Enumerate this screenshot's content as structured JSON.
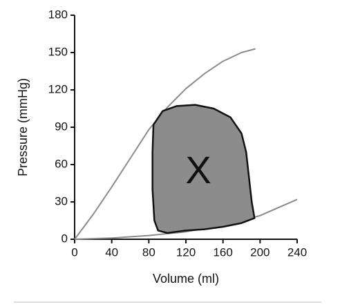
{
  "chart_data": {
    "type": "line",
    "x_label": "Volume (ml)",
    "y_label": "Pressure (mmHg)",
    "annotation": "X",
    "xlim": [
      0,
      240
    ],
    "xticks": [
      0,
      40,
      80,
      120,
      160,
      200,
      240
    ],
    "ylim": [
      0,
      180
    ],
    "yticks": [
      0,
      30,
      60,
      90,
      120,
      150,
      180
    ],
    "series": [
      {
        "color": "#8a8a8a",
        "fill": null,
        "x": [
          0,
          20,
          40,
          60,
          80,
          100,
          120,
          140,
          160,
          180,
          195
        ],
        "values": [
          0,
          20,
          42,
          65,
          88,
          106,
          121,
          133,
          143,
          150,
          153
        ]
      },
      {
        "color": "#8a8a8a",
        "fill": null,
        "x": [
          0,
          40,
          80,
          120,
          160,
          200,
          240
        ],
        "values": [
          0,
          1,
          3,
          6,
          11,
          19,
          32
        ]
      },
      {
        "color": "#111111",
        "fill": "#8c8c8c",
        "x": [
          85,
          95,
          110,
          130,
          150,
          168,
          180,
          185,
          188,
          191,
          194,
          180,
          160,
          140,
          120,
          100,
          90,
          86,
          84,
          84
        ],
        "values": [
          92,
          103,
          107,
          108,
          105,
          98,
          85,
          70,
          50,
          30,
          17,
          13,
          10,
          8,
          7,
          5,
          7,
          15,
          40,
          70
        ]
      }
    ]
  }
}
